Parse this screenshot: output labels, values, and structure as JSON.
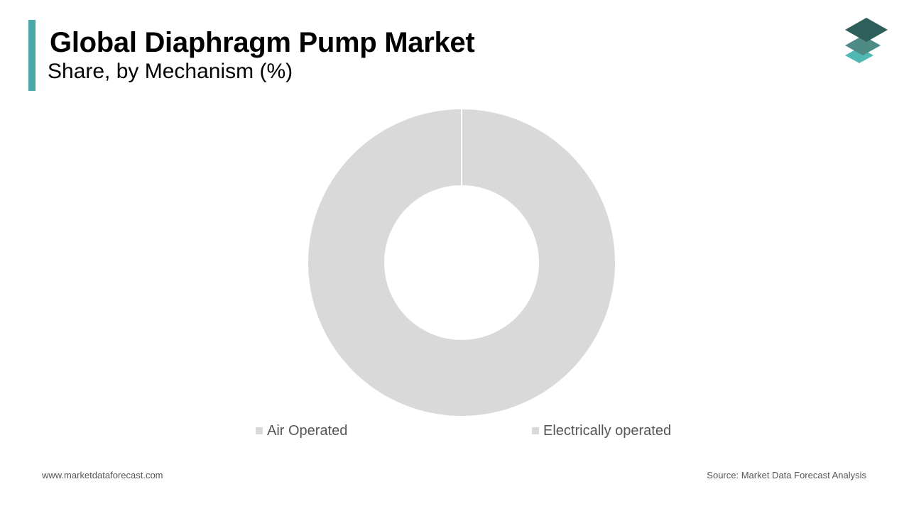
{
  "header": {
    "title": "Global Diaphragm Pump Market",
    "subtitle": "Share, by Mechanism (%)"
  },
  "brand": {
    "logo_icon": "layered-diamond-logo-icon",
    "accent_color": "#4aa8a8",
    "logo_colors": [
      "#2f5f5a",
      "#4e8b84",
      "#4fb8b2"
    ]
  },
  "chart_data": {
    "type": "pie",
    "donut": true,
    "title": "Global Diaphragm Pump Market",
    "subtitle": "Share, by Mechanism (%)",
    "categories": [
      "Air Operated",
      "Electrically operated"
    ],
    "values": [
      0,
      100
    ],
    "colors": [
      "#d9d9d9",
      "#d9d9d9"
    ],
    "slice_border_color": "#ffffff",
    "legend_position": "bottom"
  },
  "legend": {
    "items": [
      {
        "label": "Air Operated",
        "color": "#d9d9d9"
      },
      {
        "label": "Electrically operated",
        "color": "#d9d9d9"
      }
    ]
  },
  "footer": {
    "website": "www.marketdataforecast.com",
    "source": "Source: Market Data Forecast Analysis"
  }
}
